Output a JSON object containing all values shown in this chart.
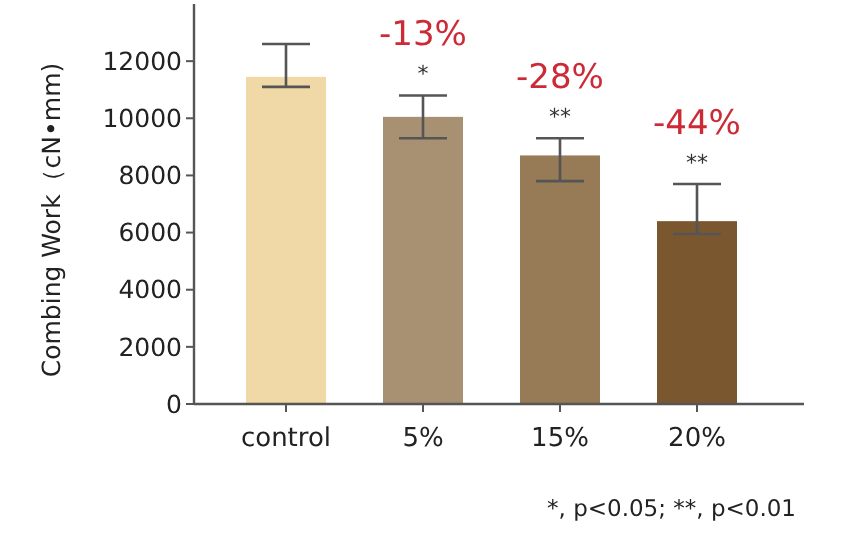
{
  "chart_data": {
    "type": "bar",
    "ylabel": "Combing Work（cN•mm)",
    "categories": [
      "control",
      "5%",
      "15%",
      "20%"
    ],
    "values": [
      11450,
      10050,
      8700,
      6400
    ],
    "colors": [
      "#f0d9a6",
      "#a89172",
      "#977a56",
      "#7b5730"
    ],
    "errors": [
      [
        11100,
        12600
      ],
      [
        9300,
        10800
      ],
      [
        7800,
        9300
      ],
      [
        5950,
        7700
      ]
    ],
    "ylim": [
      0,
      14000
    ],
    "yticks": [
      0,
      2000,
      4000,
      6000,
      8000,
      10000,
      12000
    ],
    "grid": false,
    "annotations": [
      "-13%",
      "*",
      "-28%",
      "**",
      "-44%",
      "**",
      "*, p<0.05; **, p<0.01"
    ]
  }
}
